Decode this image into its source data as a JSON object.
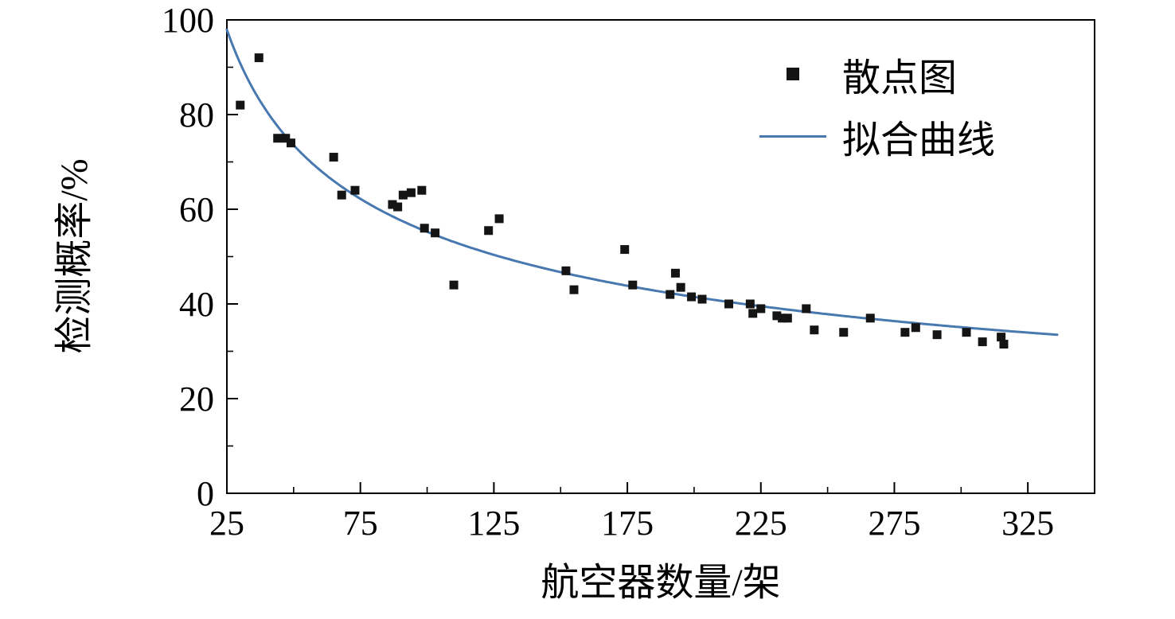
{
  "chart_data": {
    "type": "scatter",
    "title": "",
    "xlabel": "航空器数量/架",
    "ylabel": "检测概率/%",
    "xlim": [
      25,
      350
    ],
    "ylim": [
      0,
      100
    ],
    "x_major_ticks": [
      25,
      75,
      125,
      175,
      225,
      275,
      325
    ],
    "x_minor_ticks": [
      50,
      100,
      150,
      200,
      250,
      300,
      350
    ],
    "y_major_ticks": [
      0,
      20,
      40,
      60,
      80,
      100
    ],
    "y_minor_ticks": [
      10,
      30,
      50,
      70,
      90
    ],
    "grid": false,
    "legend_position": "upper-right",
    "legend": [
      {
        "label": "散点图",
        "type": "marker",
        "color": "#141414"
      },
      {
        "label": "拟合曲线",
        "type": "line",
        "color": "#4878b0"
      }
    ],
    "series": [
      {
        "name": "散点图",
        "type": "scatter",
        "marker": "square",
        "color": "#141414",
        "points": [
          [
            30,
            82
          ],
          [
            37,
            92
          ],
          [
            44,
            75
          ],
          [
            47,
            75
          ],
          [
            49,
            74
          ],
          [
            65,
            71
          ],
          [
            68,
            63
          ],
          [
            73,
            64
          ],
          [
            87,
            61
          ],
          [
            89,
            60.5
          ],
          [
            91,
            63
          ],
          [
            94,
            63.5
          ],
          [
            98,
            64
          ],
          [
            99,
            56
          ],
          [
            103,
            55
          ],
          [
            110,
            44
          ],
          [
            123,
            55.5
          ],
          [
            127,
            58
          ],
          [
            152,
            47
          ],
          [
            155,
            43
          ],
          [
            174,
            51.5
          ],
          [
            177,
            44
          ],
          [
            191,
            42
          ],
          [
            193,
            46.5
          ],
          [
            195,
            43.5
          ],
          [
            199,
            41.5
          ],
          [
            203,
            41
          ],
          [
            213,
            40
          ],
          [
            221,
            40
          ],
          [
            222,
            38
          ],
          [
            225,
            39
          ],
          [
            231,
            37.5
          ],
          [
            233,
            37
          ],
          [
            235,
            37
          ],
          [
            242,
            39
          ],
          [
            245,
            34.5
          ],
          [
            256,
            34
          ],
          [
            266,
            37
          ],
          [
            279,
            34
          ],
          [
            283,
            35
          ],
          [
            291,
            33.5
          ],
          [
            302,
            34
          ],
          [
            308,
            32
          ],
          [
            315,
            33
          ],
          [
            316,
            31.5
          ]
        ]
      },
      {
        "name": "拟合曲线",
        "type": "fit-curve",
        "color": "#4878b0",
        "fit": {
          "form": "power",
          "A": 370,
          "k": 0.413,
          "domain": [
            25,
            336
          ]
        }
      }
    ]
  }
}
